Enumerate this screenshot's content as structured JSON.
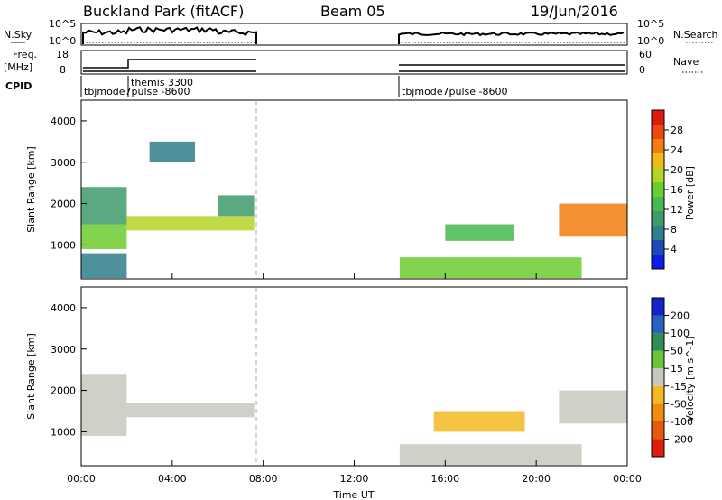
{
  "header": {
    "station": "Buckland Park (fitACF)",
    "beam": "Beam 05",
    "date": "19/Jun/2016"
  },
  "top_panels": {
    "nsky_label": "N.Sky",
    "nsky_ticks": [
      "10^5",
      "10^0"
    ],
    "nsearch_label": "N.Search",
    "nsearch_ticks": [
      "10^5",
      "10^0"
    ],
    "freq_label": "Freq.",
    "freq_unit": "[MHz]",
    "freq_ticks": [
      "18",
      "8"
    ],
    "nave_label": "Nave",
    "nave_ticks": [
      "60",
      "0"
    ],
    "cpid_label": "CPID",
    "cpid_segments": [
      {
        "start_h": 0.0,
        "end_h": 2.0,
        "name": "tbjmode7pulse -8600"
      },
      {
        "start_h": 2.0,
        "end_h": 7.6,
        "name": "themis 3300"
      },
      {
        "start_h": 14.0,
        "end_h": 24.0,
        "name": "tbjmode7pulse -8600"
      }
    ]
  },
  "x_axis": {
    "label": "Time UT",
    "ticks": [
      "00:00",
      "04:00",
      "08:00",
      "12:00",
      "16:00",
      "20:00",
      "00:00"
    ]
  },
  "power_bar": {
    "label": "Power [dB]",
    "ticks": [
      "28",
      "24",
      "20",
      "16",
      "12",
      "8",
      "4"
    ],
    "colors": [
      "#0a1de8",
      "#1f49b8",
      "#2f7e8c",
      "#3e9a6a",
      "#48b850",
      "#6ccd2f",
      "#b5d526",
      "#f0b818",
      "#f27e12",
      "#ea4a10",
      "#df1a0c"
    ]
  },
  "velocity_bar": {
    "label": "Velocity [m s^-1]",
    "ticks": [
      "200",
      "100",
      "50",
      "15",
      "-15",
      "-50",
      "-100",
      "-200"
    ],
    "colors": [
      "#1522c8",
      "#2a60c0",
      "#2f8c54",
      "#69c43a",
      "#c8c8c0",
      "#f3b822",
      "#ef8d12",
      "#e65a10",
      "#e01e0c"
    ]
  },
  "chart_data": [
    {
      "type": "heatmap",
      "panel": "power",
      "ylabel": "Slant Range [km]",
      "xlabel": "",
      "x_unit": "hours UT",
      "xlim": [
        0,
        24
      ],
      "ylim": [
        180,
        4500
      ],
      "y_ticks": [
        1000,
        2000,
        3000,
        4000
      ],
      "colorbar": "Power [dB]",
      "data_gap_hours": [
        7.6,
        14.0
      ],
      "regions": [
        {
          "t0": 0.0,
          "t1": 2.0,
          "r0": 1500,
          "r1": 2400,
          "value_db": 10
        },
        {
          "t0": 0.0,
          "t1": 2.0,
          "r0": 900,
          "r1": 1500,
          "value_db": 16
        },
        {
          "t0": 0.0,
          "t1": 2.0,
          "r0": 200,
          "r1": 800,
          "value_db": 8
        },
        {
          "t0": 2.0,
          "t1": 7.6,
          "r0": 1350,
          "r1": 1700,
          "value_db": 18
        },
        {
          "t0": 6.0,
          "t1": 7.6,
          "r0": 1700,
          "r1": 2200,
          "value_db": 10
        },
        {
          "t0": 3.0,
          "t1": 5.0,
          "r0": 3000,
          "r1": 3500,
          "value_db": 6
        },
        {
          "t0": 16.0,
          "t1": 19.0,
          "r0": 1100,
          "r1": 1500,
          "value_db": 12
        },
        {
          "t0": 14.0,
          "t1": 22.0,
          "r0": 200,
          "r1": 700,
          "value_db": 14
        },
        {
          "t0": 21.0,
          "t1": 24.0,
          "r0": 1200,
          "r1": 2000,
          "value_db": 22
        }
      ]
    },
    {
      "type": "heatmap",
      "panel": "velocity",
      "ylabel": "Slant Range [km]",
      "xlabel": "Time UT",
      "x_unit": "hours UT",
      "xlim": [
        0,
        24
      ],
      "ylim": [
        180,
        4500
      ],
      "y_ticks": [
        1000,
        2000,
        3000,
        4000
      ],
      "colorbar": "Velocity [m s^-1]",
      "data_gap_hours": [
        7.6,
        14.0
      ],
      "regions": [
        {
          "t0": 0.0,
          "t1": 2.0,
          "r0": 1500,
          "r1": 2400,
          "value_ms": 0
        },
        {
          "t0": 0.0,
          "t1": 2.0,
          "r0": 900,
          "r1": 1500,
          "value_ms": 0
        },
        {
          "t0": 2.0,
          "t1": 7.6,
          "r0": 1350,
          "r1": 1700,
          "value_ms": 0
        },
        {
          "t0": 15.5,
          "t1": 19.5,
          "r0": 1000,
          "r1": 1500,
          "value_ms": -60
        },
        {
          "t0": 14.0,
          "t1": 22.0,
          "r0": 200,
          "r1": 700,
          "value_ms": 20
        },
        {
          "t0": 21.0,
          "t1": 24.0,
          "r0": 1200,
          "r1": 2000,
          "value_ms": -20
        }
      ]
    }
  ]
}
